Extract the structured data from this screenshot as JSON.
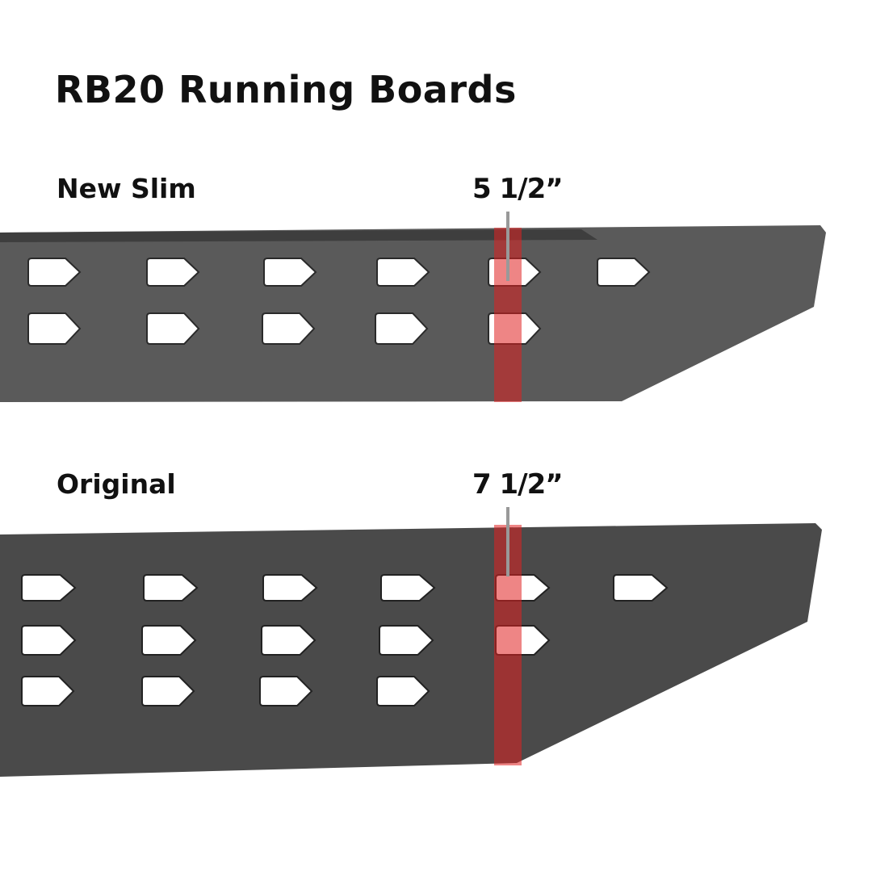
{
  "title": "RB20 Running Boards",
  "boards": [
    {
      "label": "New Slim",
      "width": "5 1/2”"
    },
    {
      "label": "Original",
      "width": "7 1/2”"
    }
  ],
  "colors": {
    "board_slim": "#5a5a5a",
    "board_original": "#4a4a4a",
    "highlight": "#e02020",
    "leader": "#999999"
  }
}
